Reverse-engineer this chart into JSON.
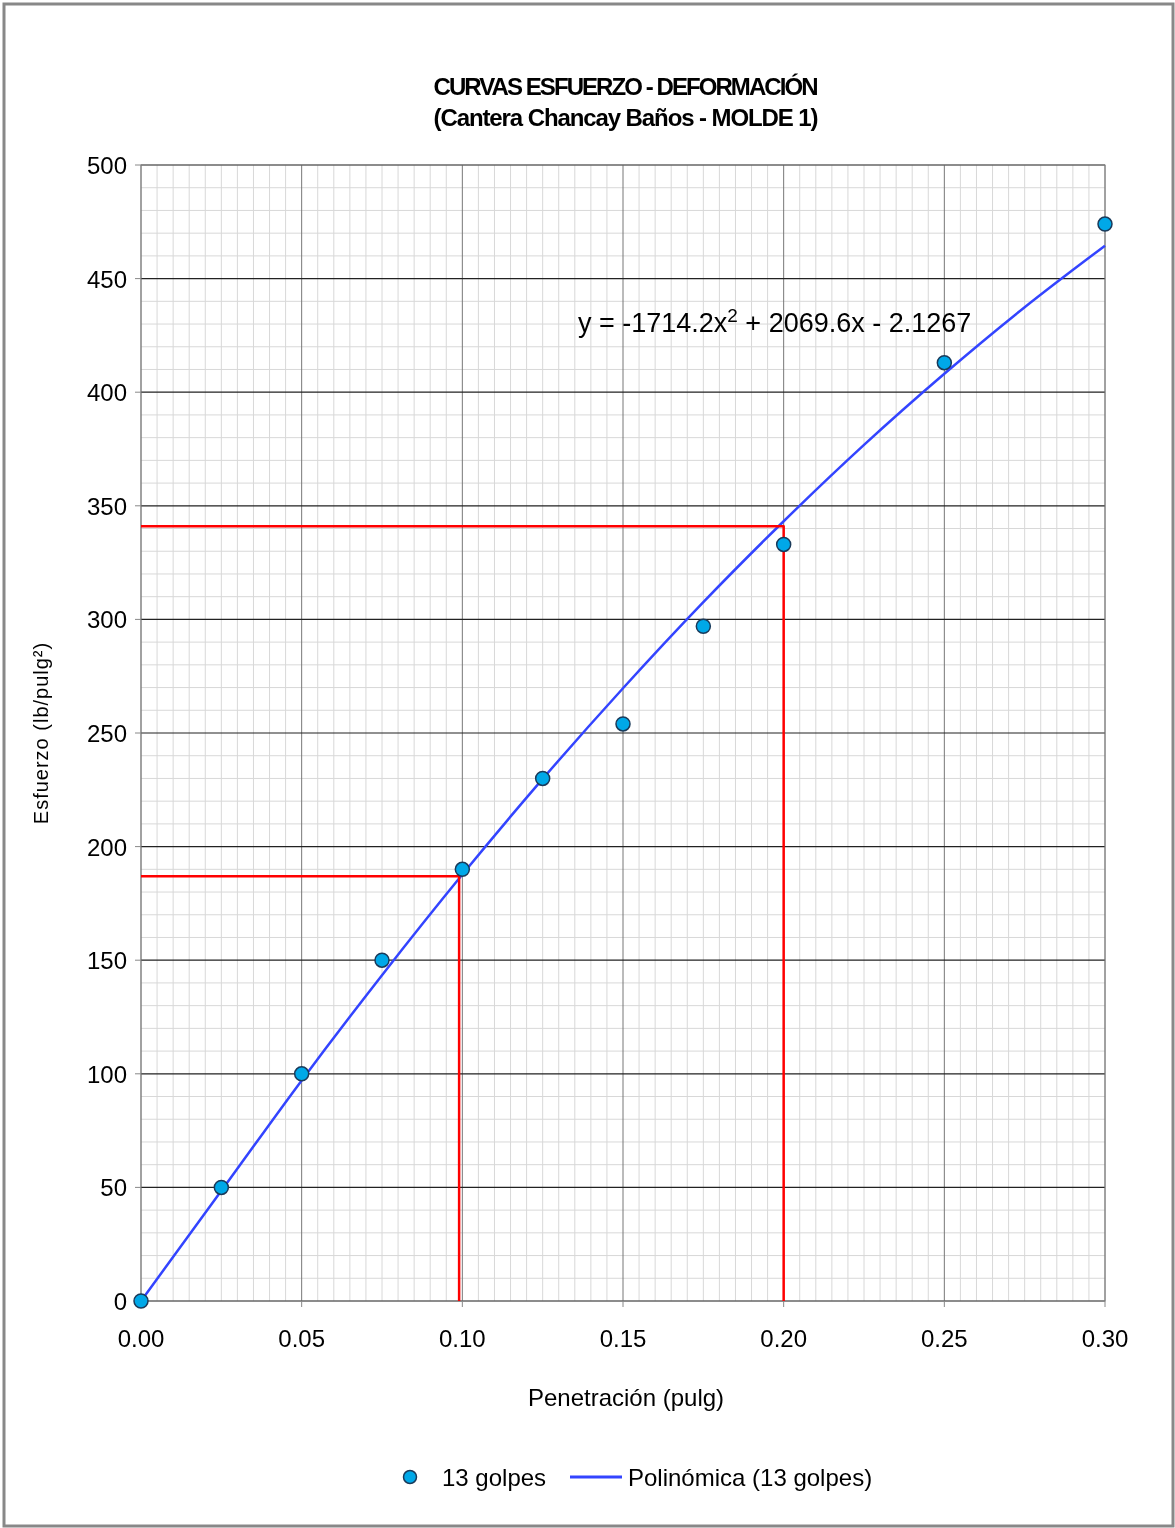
{
  "chart_data": {
    "type": "scatter",
    "title": "CURVAS ESFUERZO - DEFORMACIÓN",
    "subtitle": "(Cantera Chancay Baños - MOLDE 1)",
    "xlabel": "Penetración (pulg)",
    "ylabel": "Esfuerzo (lb/pulg²)",
    "x": [
      0,
      0.025,
      0.05,
      0.075,
      0.1,
      0.125,
      0.15,
      0.175,
      0.2,
      0.25,
      0.3
    ],
    "series": [
      {
        "name": "13 golpes",
        "marker": "circle",
        "color": "#00a8e8",
        "values": [
          0,
          50,
          100,
          150,
          190,
          230,
          254,
          297,
          333,
          413,
          474
        ]
      },
      {
        "name": "Polinómica (13 golpes)",
        "type": "line",
        "color": "#3344ff",
        "x": [
          0,
          0.025,
          0.05,
          0.075,
          0.1,
          0.125,
          0.15,
          0.175,
          0.2,
          0.225,
          0.25,
          0.275,
          0.3
        ],
        "values": [
          0,
          48.5,
          97.1,
          143.4,
          187.7,
          229.8,
          269.7,
          307.6,
          343.2,
          376.8,
          408.1,
          437.4,
          464.5
        ]
      },
      {
        "type": "line",
        "color": "#ff0000",
        "x": [
          0,
          0.099,
          0.099
        ],
        "values": [
          187,
          187,
          0
        ]
      },
      {
        "type": "line",
        "color": "#ff0000",
        "x": [
          0,
          0.2,
          0.2
        ],
        "values": [
          341,
          341,
          0
        ]
      }
    ],
    "annotations": [
      "y = -1714.2x$^{2}$ + 2069.6x - 2.1267"
    ],
    "xlim": [
      0,
      0.3
    ],
    "ylim": [
      0,
      500
    ],
    "xticks": [
      {
        "value": 0,
        "label": "0.00"
      },
      {
        "value": 0.05,
        "label": "0.05"
      },
      {
        "value": 0.1,
        "label": "0.10"
      },
      {
        "value": 0.15,
        "label": "0.15"
      },
      {
        "value": 0.2,
        "label": "0.20"
      },
      {
        "value": 0.25,
        "label": "0.25"
      },
      {
        "value": 0.3,
        "label": "0.30"
      }
    ],
    "yticks": [
      0,
      50,
      100,
      150,
      200,
      250,
      300,
      350,
      400,
      450,
      500
    ],
    "grid": true,
    "legend": "bottom"
  }
}
